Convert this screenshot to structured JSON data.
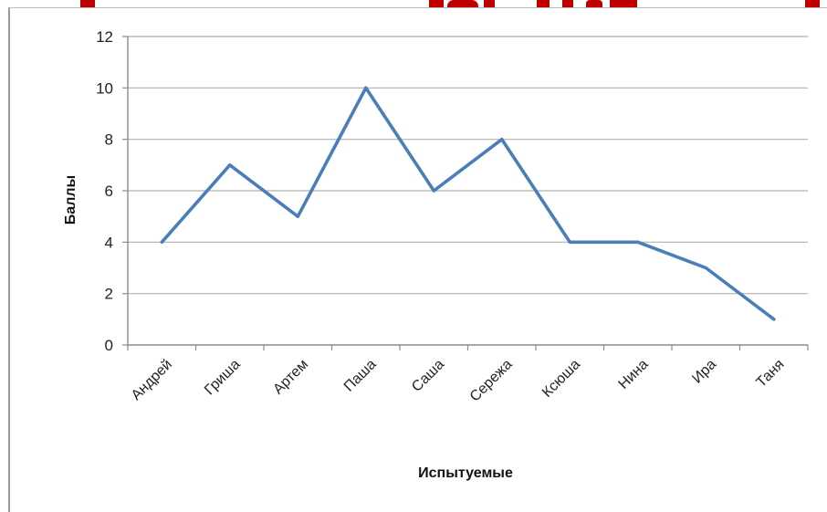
{
  "colors": {
    "series": "#4a7ebb",
    "grid": "#b0b0b0",
    "axis": "#8c8c8c",
    "tick_text": "#222222",
    "title_fragment": "#c00000"
  },
  "chart_data": {
    "type": "line",
    "title": "",
    "xlabel": "Испытуемые",
    "ylabel": "Баллы",
    "categories": [
      "Андрей",
      "Гриша",
      "Артем",
      "Паша",
      "Саша",
      "Сережа",
      "Ксюша",
      "Нина",
      "Ира",
      "Таня"
    ],
    "series": [
      {
        "values": [
          4,
          7,
          5,
          10,
          6,
          8,
          4,
          4,
          3,
          1
        ]
      }
    ],
    "ylim": [
      0,
      12
    ],
    "yticks": [
      0,
      2,
      4,
      6,
      8,
      10,
      12
    ],
    "grid": "horizontal",
    "legend": "none"
  }
}
